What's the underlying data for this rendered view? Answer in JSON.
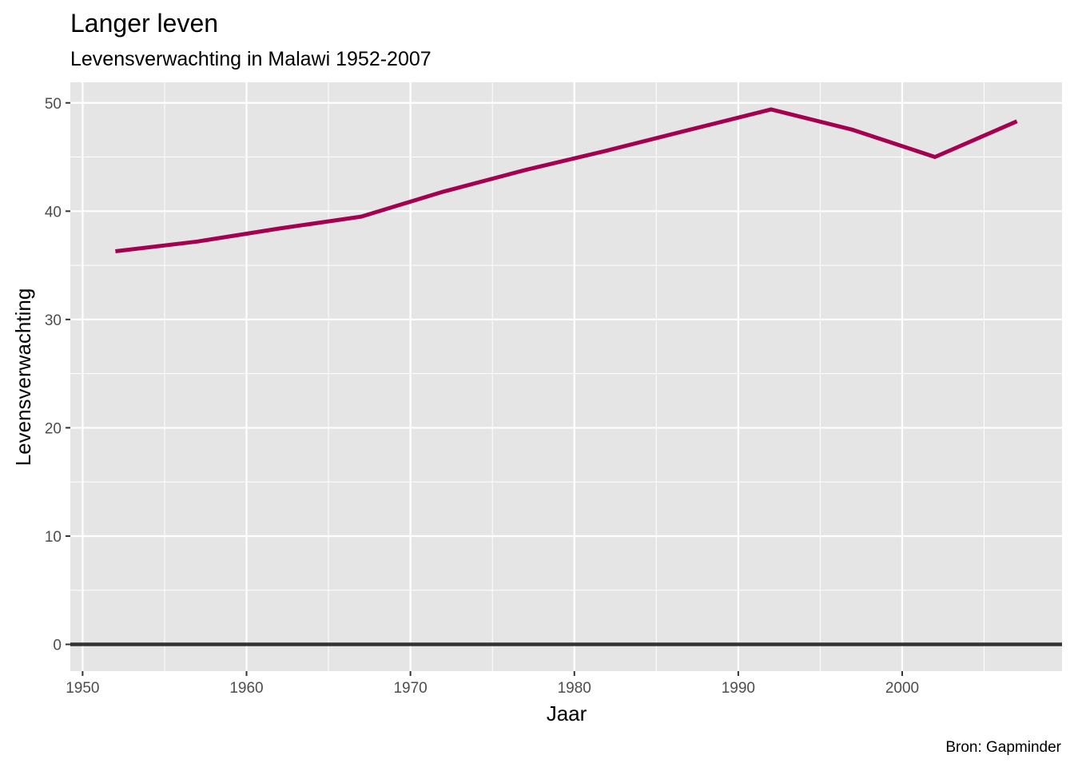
{
  "chart_data": {
    "type": "line",
    "title": "Langer leven",
    "subtitle": "Levensverwachting in Malawi 1952-2007",
    "xlabel": "Jaar",
    "ylabel": "Levensverwachting",
    "caption": "Bron: Gapminder",
    "xlim": [
      1949.25,
      2009.75
    ],
    "ylim": [
      -2.47,
      51.9
    ],
    "x_ticks": [
      1950,
      1960,
      1970,
      1980,
      1990,
      2000
    ],
    "x_tick_labels": [
      "1950",
      "1960",
      "1970",
      "1980",
      "1990",
      "2000"
    ],
    "y_ticks": [
      0,
      10,
      20,
      30,
      40,
      50
    ],
    "y_tick_labels": [
      "0",
      "10",
      "20",
      "30",
      "40",
      "50"
    ],
    "x_minor_ticks": [
      1955,
      1965,
      1975,
      1985,
      1995,
      2005
    ],
    "y_minor_ticks": [
      5,
      15,
      25,
      35,
      45
    ],
    "hline": 0,
    "grid": true,
    "colors": {
      "line": "#a50050",
      "panel": "#e5e5e5",
      "hline": "#333333"
    },
    "series": [
      {
        "x": [
          1952,
          1957,
          1962,
          1967,
          1972,
          1977,
          1982,
          1987,
          1992,
          1997,
          2002,
          2007
        ],
        "y": [
          36.3,
          37.2,
          38.4,
          39.5,
          41.8,
          43.8,
          45.6,
          47.5,
          49.4,
          47.5,
          45.0,
          48.3
        ]
      }
    ]
  }
}
